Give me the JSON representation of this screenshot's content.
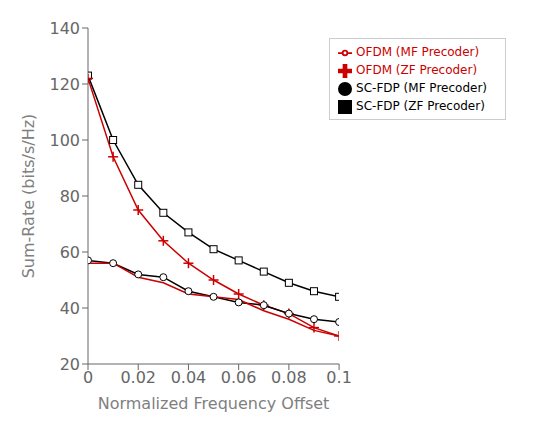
{
  "chart_data": {
    "type": "line",
    "x": [
      0,
      0.01,
      0.02,
      0.03,
      0.04,
      0.05,
      0.06,
      0.07,
      0.08,
      0.09,
      0.1
    ],
    "series": [
      {
        "name": "SC-FDP (ZF Precoder)",
        "color": "#000000",
        "marker": "square",
        "values": [
          123,
          100,
          84,
          74,
          67,
          61,
          57,
          53,
          49,
          46,
          44
        ]
      },
      {
        "name": "OFDM (ZF Precoder)",
        "color": "#cc0000",
        "marker": "plus",
        "values": [
          122,
          94,
          75,
          64,
          56,
          50,
          45,
          41,
          38,
          33,
          30
        ]
      },
      {
        "name": "SC-FDP (MF Precoder)",
        "color": "#000000",
        "marker": "circle",
        "values": [
          57,
          56,
          52,
          51,
          46,
          44,
          42,
          41,
          38,
          36,
          35
        ]
      },
      {
        "name": "OFDM (MF Precoder)",
        "color": "#cc0000",
        "marker": "none",
        "values": [
          56,
          56,
          51,
          49,
          45,
          44,
          43,
          39,
          36,
          32,
          30
        ]
      }
    ],
    "xlabel": "Normalized Frequency Offset",
    "ylabel": "Sum-Rate (bits/s/Hz)",
    "xlim": [
      0,
      0.1
    ],
    "ylim": [
      20,
      140
    ],
    "xticks": [
      0,
      0.02,
      0.04,
      0.06,
      0.08,
      0.1
    ],
    "yticks": [
      20,
      40,
      60,
      80,
      100,
      120,
      140
    ],
    "grid": false,
    "legend": "upper right"
  }
}
